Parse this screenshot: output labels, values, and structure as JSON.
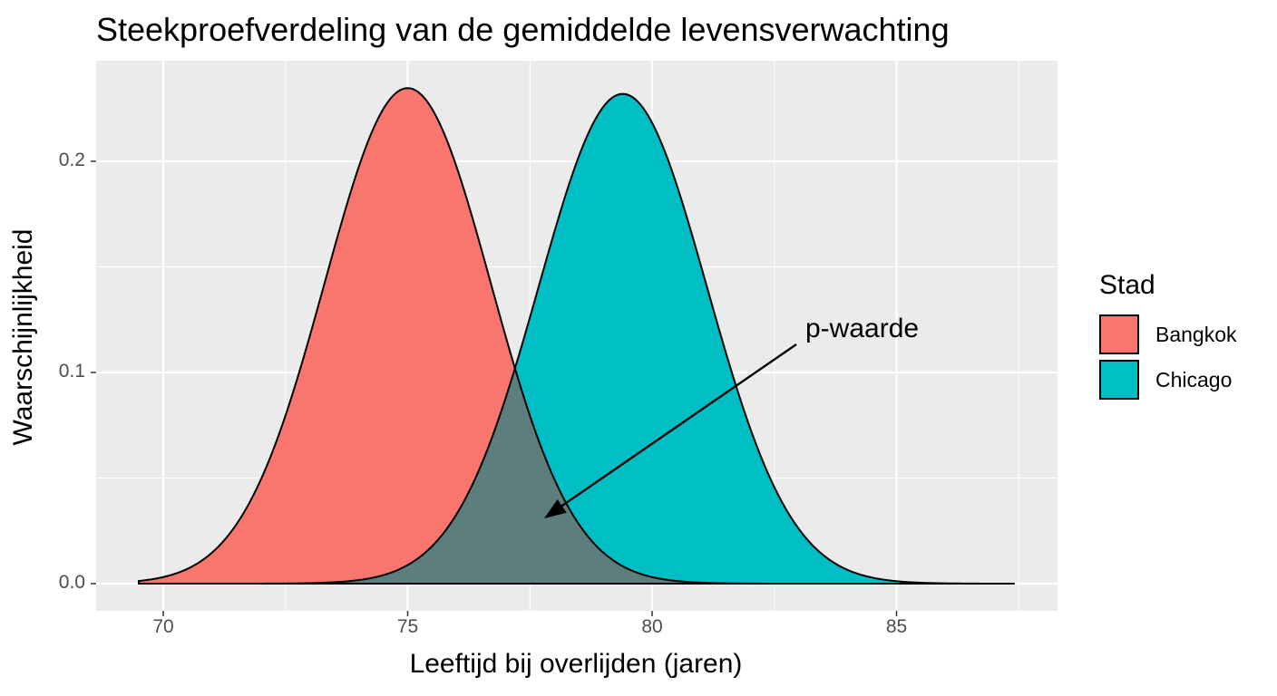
{
  "chart": {
    "title": "Steekproefverdeling van de gemiddelde levensverwachting",
    "xlabel": "Leeftijd bij overlijden (jaren)",
    "ylabel": "Waarschijnlijkheid",
    "annotation": "p-waarde",
    "legend": {
      "title": "Stad",
      "items": [
        {
          "label": "Bangkok",
          "color": "#f8766d"
        },
        {
          "label": "Chicago",
          "color": "#00bfc4"
        }
      ]
    },
    "x_ticks": [
      "70",
      "75",
      "80",
      "85"
    ],
    "y_ticks": [
      "0.0",
      "0.1",
      "0.2"
    ],
    "colors": {
      "panel_bg": "#ebebeb",
      "grid": "#ffffff",
      "bangkok": "#f8766d",
      "chicago": "#00bfc4",
      "overlap": "#5c7f7e"
    }
  },
  "chart_data": {
    "type": "area",
    "title": "Steekproefverdeling van de gemiddelde levensverwachting",
    "xlabel": "Leeftijd bij overlijden (jaren)",
    "ylabel": "Waarschijnlijkheid",
    "xlim": [
      68.6,
      88.3
    ],
    "ylim": [
      -0.01,
      0.247
    ],
    "x_ticks": [
      70,
      75,
      80,
      85
    ],
    "y_ticks": [
      0.0,
      0.1,
      0.2
    ],
    "grid": true,
    "legend_position": "right",
    "legend_title": "Stad",
    "series": [
      {
        "name": "Bangkok",
        "distribution": "normal",
        "mean": 75.0,
        "sd": 1.7,
        "x_range": [
          69.5,
          83.0
        ],
        "peak_density": 0.234,
        "color": "#f8766d"
      },
      {
        "name": "Chicago",
        "distribution": "normal",
        "mean": 79.4,
        "sd": 1.72,
        "x_range": [
          72.0,
          87.4
        ],
        "peak_density": 0.231,
        "color": "#00bfc4"
      }
    ],
    "annotations": [
      {
        "text": "p-waarde",
        "x": 83.0,
        "y": 0.119,
        "arrow_to": {
          "x": 77.8,
          "y": 0.031
        }
      }
    ]
  }
}
